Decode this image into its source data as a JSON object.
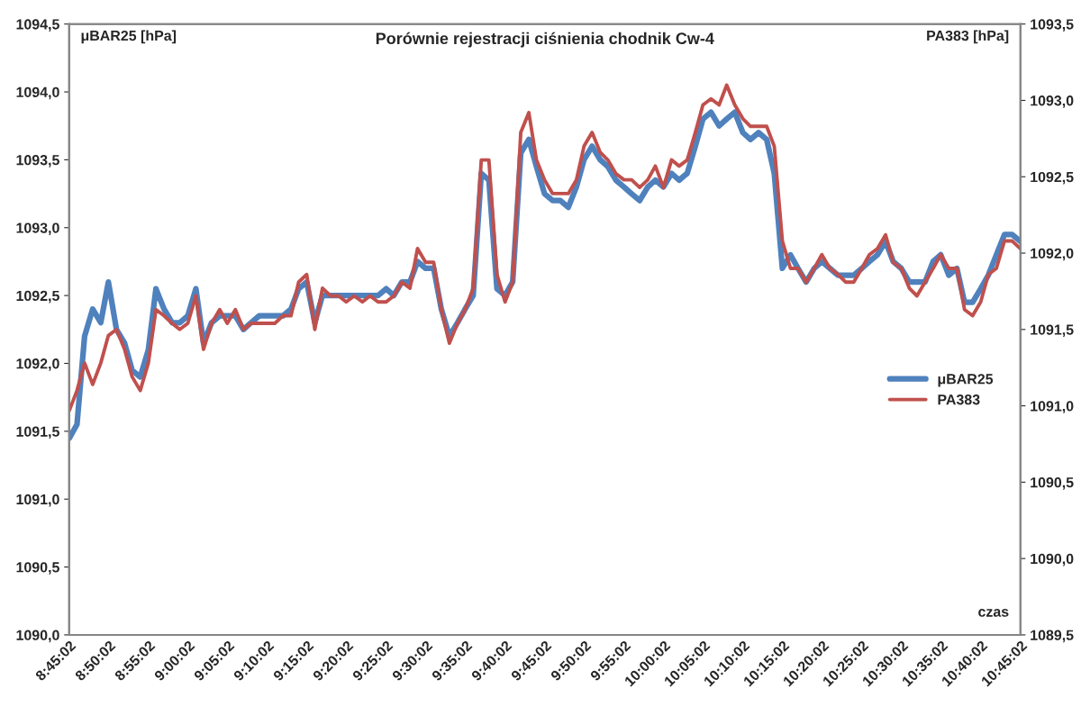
{
  "chart_data": {
    "type": "line",
    "title": "Porównie rejestracji ciśnienia chodnik Cw-4",
    "xlabel": "czas",
    "ylabel": "μBAR25 [hPa]",
    "y2label": "PA383 [hPa]",
    "x": [
      8.751,
      8.767,
      8.783,
      8.8,
      8.817,
      8.833,
      8.85,
      8.867,
      8.883,
      8.9,
      8.917,
      8.933,
      8.95,
      8.967,
      8.983,
      9.0,
      9.017,
      9.033,
      9.05,
      9.067,
      9.083,
      9.1,
      9.117,
      9.133,
      9.15,
      9.167,
      9.183,
      9.2,
      9.217,
      9.233,
      9.25,
      9.267,
      9.283,
      9.3,
      9.317,
      9.333,
      9.35,
      9.367,
      9.383,
      9.4,
      9.417,
      9.433,
      9.45,
      9.467,
      9.483,
      9.5,
      9.517,
      9.533,
      9.55,
      9.567,
      9.583,
      9.6,
      9.617,
      9.633,
      9.65,
      9.667,
      9.683,
      9.7,
      9.717,
      9.733,
      9.75,
      9.767,
      9.783,
      9.8,
      9.817,
      9.833,
      9.85,
      9.867,
      9.883,
      9.9,
      9.917,
      9.933,
      9.95,
      9.967,
      9.983,
      10.0,
      10.017,
      10.033,
      10.05,
      10.067,
      10.083,
      10.1,
      10.117,
      10.133,
      10.15,
      10.167,
      10.183,
      10.2,
      10.217,
      10.233,
      10.25,
      10.267,
      10.283,
      10.3,
      10.317,
      10.333,
      10.35,
      10.367,
      10.383,
      10.4,
      10.417,
      10.433,
      10.45,
      10.467,
      10.483,
      10.5,
      10.517,
      10.533,
      10.55,
      10.567,
      10.583,
      10.6,
      10.617,
      10.633,
      10.65,
      10.667,
      10.683,
      10.7,
      10.717,
      10.733,
      10.75
    ],
    "series": [
      {
        "name": "μBAR25",
        "color": "#4f81bd",
        "values": [
          1091.45,
          1091.55,
          1092.2,
          1092.4,
          1092.3,
          1092.6,
          1092.25,
          1092.15,
          1091.95,
          1091.9,
          1092.1,
          1092.55,
          1092.4,
          1092.3,
          1092.3,
          1092.35,
          1092.55,
          1092.15,
          1092.3,
          1092.35,
          1092.35,
          1092.35,
          1092.25,
          1092.3,
          1092.35,
          1092.35,
          1092.35,
          1092.35,
          1092.4,
          1092.55,
          1092.6,
          1092.3,
          1092.5,
          1092.5,
          1092.5,
          1092.5,
          1092.5,
          1092.5,
          1092.5,
          1092.5,
          1092.55,
          1092.5,
          1092.6,
          1092.6,
          1092.75,
          1092.7,
          1092.7,
          1092.4,
          1092.2,
          1092.3,
          1092.4,
          1092.5,
          1093.4,
          1093.35,
          1092.55,
          1092.5,
          1092.6,
          1093.55,
          1093.65,
          1093.45,
          1093.25,
          1093.2,
          1093.2,
          1093.15,
          1093.3,
          1093.5,
          1093.6,
          1093.5,
          1093.45,
          1093.35,
          1093.3,
          1093.25,
          1093.2,
          1093.3,
          1093.35,
          1093.3,
          1093.4,
          1093.35,
          1093.4,
          1093.6,
          1093.8,
          1093.85,
          1093.75,
          1093.8,
          1093.85,
          1093.7,
          1093.65,
          1093.7,
          1093.65,
          1093.4,
          1092.7,
          1092.8,
          1092.7,
          1092.6,
          1092.7,
          1092.75,
          1092.7,
          1092.65,
          1092.65,
          1092.65,
          1092.7,
          1092.75,
          1092.8,
          1092.9,
          1092.75,
          1092.7,
          1092.6,
          1092.6,
          1092.6,
          1092.75,
          1092.8,
          1092.65,
          1092.7,
          1092.45,
          1092.45,
          1092.55,
          1092.65,
          1092.8,
          1092.95,
          1092.95,
          1092.9
        ]
      },
      {
        "name": "PA383",
        "color": "#c0504d",
        "axis": "y2",
        "values": [
          1090.97,
          1091.1,
          1091.28,
          1091.14,
          1091.28,
          1091.46,
          1091.5,
          1091.37,
          1091.19,
          1091.1,
          1091.28,
          1091.63,
          1091.59,
          1091.54,
          1091.5,
          1091.54,
          1091.72,
          1091.37,
          1091.54,
          1091.63,
          1091.54,
          1091.63,
          1091.5,
          1091.54,
          1091.54,
          1091.54,
          1091.54,
          1091.59,
          1091.59,
          1091.81,
          1091.86,
          1091.5,
          1091.77,
          1091.72,
          1091.72,
          1091.68,
          1091.72,
          1091.68,
          1091.72,
          1091.68,
          1091.68,
          1091.72,
          1091.81,
          1091.77,
          1092.03,
          1091.94,
          1091.94,
          1091.63,
          1091.41,
          1091.54,
          1091.63,
          1091.77,
          1092.61,
          1092.61,
          1091.86,
          1091.68,
          1091.81,
          1092.79,
          1092.92,
          1092.61,
          1092.48,
          1092.39,
          1092.39,
          1092.39,
          1092.48,
          1092.7,
          1092.79,
          1092.66,
          1092.61,
          1092.52,
          1092.48,
          1092.48,
          1092.43,
          1092.48,
          1092.57,
          1092.43,
          1092.61,
          1092.57,
          1092.61,
          1092.79,
          1092.97,
          1093.01,
          1092.97,
          1093.1,
          1092.97,
          1092.88,
          1092.83,
          1092.83,
          1092.83,
          1092.7,
          1092.08,
          1091.9,
          1091.9,
          1091.81,
          1091.9,
          1091.99,
          1091.9,
          1091.86,
          1091.81,
          1091.81,
          1091.9,
          1091.99,
          1092.03,
          1092.12,
          1091.94,
          1091.9,
          1091.77,
          1091.72,
          1091.81,
          1091.9,
          1091.99,
          1091.9,
          1091.9,
          1091.63,
          1091.59,
          1091.68,
          1091.86,
          1091.9,
          1092.08,
          1092.08,
          1092.03
        ]
      }
    ],
    "xlim": [
      8.7506,
      10.7506
    ],
    "xticks": [
      {
        "value": 8.7506,
        "label": "8:45:02"
      },
      {
        "value": 8.8339,
        "label": "8:50:02"
      },
      {
        "value": 8.9172,
        "label": "8:55:02"
      },
      {
        "value": 9.0006,
        "label": "9:00:02"
      },
      {
        "value": 9.0839,
        "label": "9:05:02"
      },
      {
        "value": 9.1672,
        "label": "9:10:02"
      },
      {
        "value": 9.2506,
        "label": "9:15:02"
      },
      {
        "value": 9.3339,
        "label": "9:20:02"
      },
      {
        "value": 9.4172,
        "label": "9:25:02"
      },
      {
        "value": 9.5006,
        "label": "9:30:02"
      },
      {
        "value": 9.5839,
        "label": "9:35:02"
      },
      {
        "value": 9.6672,
        "label": "9:40:02"
      },
      {
        "value": 9.7506,
        "label": "9:45:02"
      },
      {
        "value": 9.8339,
        "label": "9:50:02"
      },
      {
        "value": 9.9172,
        "label": "9:55:02"
      },
      {
        "value": 10.0006,
        "label": "10:00:02"
      },
      {
        "value": 10.0839,
        "label": "10:05:02"
      },
      {
        "value": 10.1672,
        "label": "10:10:02"
      },
      {
        "value": 10.2506,
        "label": "10:15:02"
      },
      {
        "value": 10.3339,
        "label": "10:20:02"
      },
      {
        "value": 10.4172,
        "label": "10:25:02"
      },
      {
        "value": 10.5006,
        "label": "10:30:02"
      },
      {
        "value": 10.5839,
        "label": "10:35:02"
      },
      {
        "value": 10.6672,
        "label": "10:40:02"
      },
      {
        "value": 10.7506,
        "label": "10:45:02"
      }
    ],
    "ylim": [
      1090.0,
      1094.5
    ],
    "yticks": [
      {
        "value": 1090.0,
        "label": "1090,0"
      },
      {
        "value": 1090.5,
        "label": "1090,5"
      },
      {
        "value": 1091.0,
        "label": "1091,0"
      },
      {
        "value": 1091.5,
        "label": "1091,5"
      },
      {
        "value": 1092.0,
        "label": "1092,0"
      },
      {
        "value": 1092.5,
        "label": "1092,5"
      },
      {
        "value": 1093.0,
        "label": "1093,0"
      },
      {
        "value": 1093.5,
        "label": "1093,5"
      },
      {
        "value": 1094.0,
        "label": "1094,0"
      },
      {
        "value": 1094.5,
        "label": "1094,5"
      }
    ],
    "y2lim": [
      1089.5,
      1093.5
    ],
    "y2ticks": [
      {
        "value": 1089.5,
        "label": "1089,5"
      },
      {
        "value": 1090.0,
        "label": "1090,0"
      },
      {
        "value": 1090.5,
        "label": "1090,5"
      },
      {
        "value": 1091.0,
        "label": "1091,0"
      },
      {
        "value": 1091.5,
        "label": "1091,5"
      },
      {
        "value": 1092.0,
        "label": "1092,0"
      },
      {
        "value": 1092.5,
        "label": "1092,5"
      },
      {
        "value": 1093.0,
        "label": "1093,0"
      },
      {
        "value": 1093.5,
        "label": "1093,5"
      }
    ],
    "grid": false,
    "legend": "right",
    "marker": "none",
    "line_style": "solid"
  }
}
